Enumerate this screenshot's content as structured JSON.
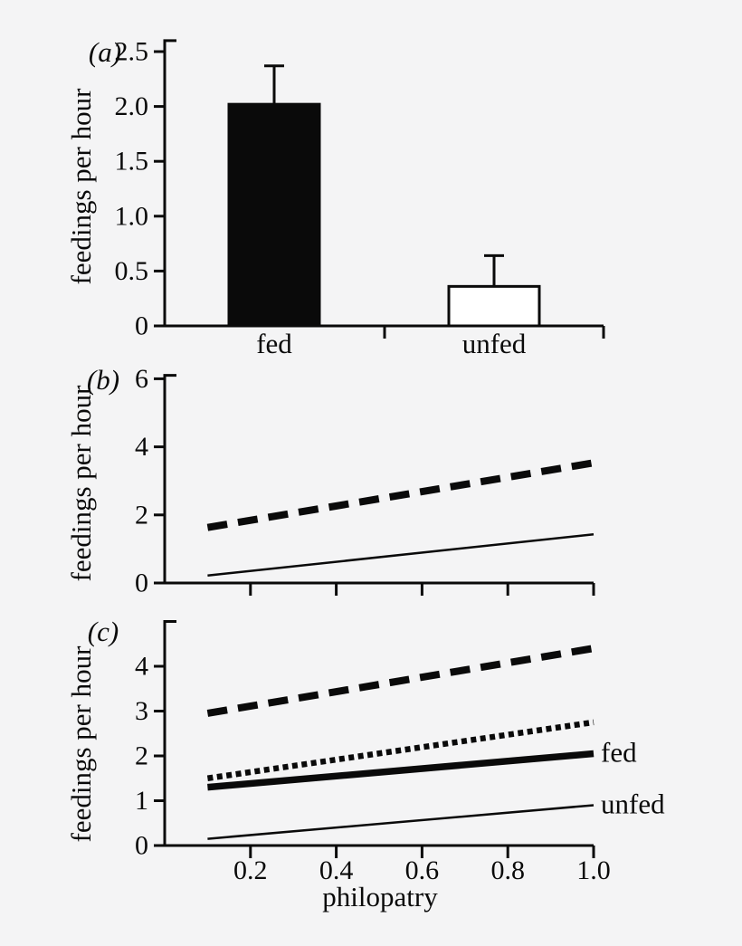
{
  "figure": {
    "background": "#f4f4f5",
    "ink": "#0a0a0a",
    "panel_labels": [
      "(a)",
      "(b)",
      "(c)"
    ]
  },
  "chart_data": [
    {
      "type": "bar",
      "panel": "(a)",
      "ylabel": "feedings per hour",
      "ylim": [
        0,
        2.6
      ],
      "yticks": [
        "0",
        "0.5",
        "1.0",
        "1.5",
        "2.0",
        "2.5"
      ],
      "categories": [
        "fed",
        "unfed"
      ],
      "values": [
        2.02,
        0.36
      ],
      "error_up": [
        0.35,
        0.28
      ],
      "bar_fill": [
        "#0a0a0a",
        "#ffffff"
      ],
      "grid": false,
      "legend": "none"
    },
    {
      "type": "line",
      "panel": "(b)",
      "ylabel": "feedings per hour",
      "ylim": [
        0,
        6.1
      ],
      "yticks": [
        "0",
        "2",
        "4",
        "6"
      ],
      "x_range": [
        0.1,
        1.0
      ],
      "xticks_unlabeled": [
        "0.2",
        "0.4",
        "0.6",
        "0.8",
        "1.0"
      ],
      "series": [
        {
          "style": "thick-dashed",
          "x": [
            0.1,
            1.0
          ],
          "y": [
            1.63,
            3.53
          ]
        },
        {
          "style": "thin-solid",
          "x": [
            0.1,
            1.0
          ],
          "y": [
            0.22,
            1.43
          ]
        }
      ],
      "grid": false,
      "legend": "none"
    },
    {
      "type": "line",
      "panel": "(c)",
      "ylabel": "feedings per hour",
      "xlabel": "philopatry",
      "ylim": [
        0,
        5
      ],
      "yticks": [
        "0",
        "1",
        "2",
        "3",
        "4"
      ],
      "xticks": [
        "0.2",
        "0.4",
        "0.6",
        "0.8",
        "1.0"
      ],
      "x_range": [
        0.1,
        1.0
      ],
      "series": [
        {
          "style": "thick-dashed",
          "x": [
            0.1,
            1.0
          ],
          "y": [
            2.95,
            4.4
          ]
        },
        {
          "style": "thick-dotted",
          "x": [
            0.1,
            1.0
          ],
          "y": [
            1.5,
            2.75
          ]
        },
        {
          "style": "thick-solid",
          "label": "fed",
          "x": [
            0.1,
            1.0
          ],
          "y": [
            1.3,
            2.05
          ]
        },
        {
          "style": "thin-solid",
          "label": "unfed",
          "x": [
            0.1,
            1.0
          ],
          "y": [
            0.15,
            0.9
          ]
        }
      ],
      "grid": false,
      "legend": "inline-right"
    }
  ]
}
